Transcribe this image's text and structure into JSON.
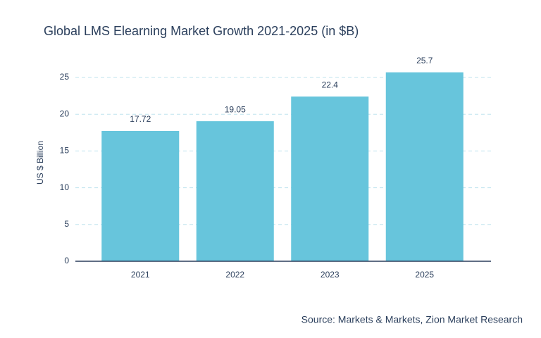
{
  "chart_data": {
    "type": "bar",
    "title": "Global LMS Elearning Market Growth 2021-2025 (in $B)",
    "y_label": "US $ Billion",
    "source": "Source: Markets & Markets, Zion Market Research",
    "categories": [
      "2021",
      "2022",
      "2023",
      "2025"
    ],
    "values": [
      17.72,
      19.05,
      22.4,
      25.7
    ],
    "color": "#67c5dc",
    "ylim": [
      0,
      27
    ],
    "yticks": [
      0,
      5,
      10,
      15,
      20,
      25
    ],
    "grid": true
  }
}
